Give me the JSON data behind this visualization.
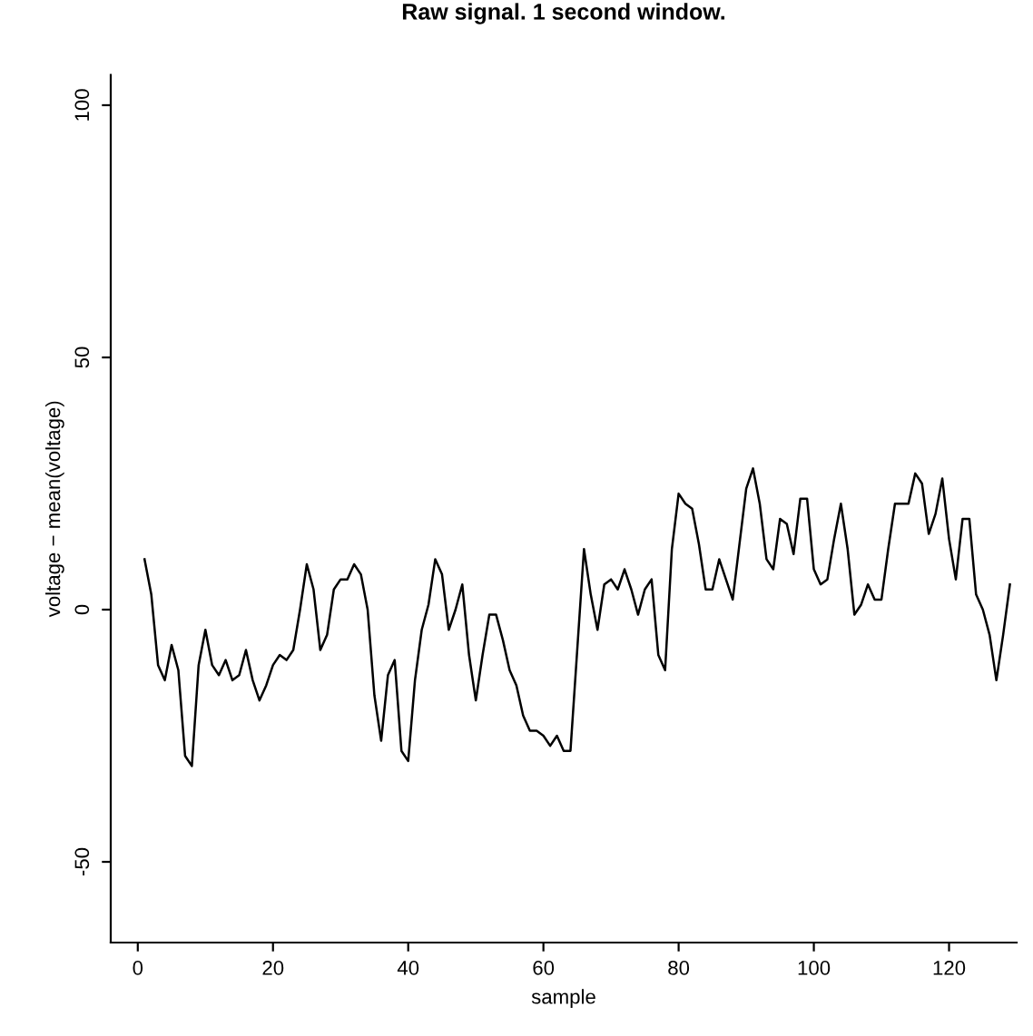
{
  "chart_data": {
    "type": "line",
    "title": "Raw signal. 1 second window.",
    "xlabel": "sample",
    "ylabel": "voltage − mean(voltage)",
    "x": [
      1,
      2,
      3,
      4,
      5,
      6,
      7,
      8,
      9,
      10,
      11,
      12,
      13,
      14,
      15,
      16,
      17,
      18,
      19,
      20,
      21,
      22,
      23,
      24,
      25,
      26,
      27,
      28,
      29,
      30,
      31,
      32,
      33,
      34,
      35,
      36,
      37,
      38,
      39,
      40,
      41,
      42,
      43,
      44,
      45,
      46,
      47,
      48,
      49,
      50,
      51,
      52,
      53,
      54,
      55,
      56,
      57,
      58,
      59,
      60,
      61,
      62,
      63,
      64,
      65,
      66,
      67,
      68,
      69,
      70,
      71,
      72,
      73,
      74,
      75,
      76,
      77,
      78,
      79,
      80,
      81,
      82,
      83,
      84,
      85,
      86,
      87,
      88,
      89,
      90,
      91,
      92,
      93,
      94,
      95,
      96,
      97,
      98,
      99,
      100,
      101,
      102,
      103,
      104,
      105,
      106,
      107,
      108,
      109,
      110,
      111,
      112,
      113,
      114,
      115,
      116,
      117,
      118,
      119,
      120,
      121,
      122,
      123,
      124,
      125,
      126,
      127,
      128,
      129
    ],
    "series": [
      {
        "color": "#000000",
        "values": [
          10,
          3,
          -11,
          -14,
          -7,
          -12,
          -29,
          -31,
          -11,
          -4,
          -11,
          -13,
          -10,
          -14,
          -13,
          -8,
          -14,
          -18,
          -15,
          -11,
          -9,
          -10,
          -8,
          0,
          9,
          4,
          -8,
          -5,
          4,
          6,
          6,
          9,
          7,
          0,
          -17,
          -26,
          -13,
          -10,
          -28,
          -30,
          -14,
          -4,
          1,
          10,
          7,
          -4,
          0,
          5,
          -9,
          -18,
          -9,
          -1,
          -1,
          -6,
          -12,
          -15,
          -21,
          -24,
          -24,
          -25,
          -27,
          -25,
          -28,
          -28,
          -8,
          12,
          3,
          -4,
          5,
          6,
          4,
          8,
          4,
          -1,
          4,
          6,
          -9,
          -12,
          12,
          23,
          21,
          20,
          13,
          4,
          4,
          10,
          6,
          2,
          13,
          24,
          28,
          21,
          10,
          8,
          18,
          17,
          11,
          22,
          22,
          8,
          5,
          6,
          14,
          21,
          12,
          -1,
          1,
          5,
          2,
          2,
          12,
          21,
          21,
          21,
          27,
          25,
          15,
          19,
          26,
          14,
          6,
          18,
          18,
          3,
          0,
          -5,
          -14,
          -5,
          5
        ]
      }
    ],
    "xlim": [
      -4,
      130
    ],
    "ylim": [
      -66,
      106
    ],
    "xticks": [
      0,
      20,
      40,
      60,
      80,
      100,
      120
    ],
    "yticks": [
      -50,
      0,
      50,
      100
    ],
    "grid": false,
    "legend": false,
    "marker": "none",
    "line_style": "solid"
  }
}
